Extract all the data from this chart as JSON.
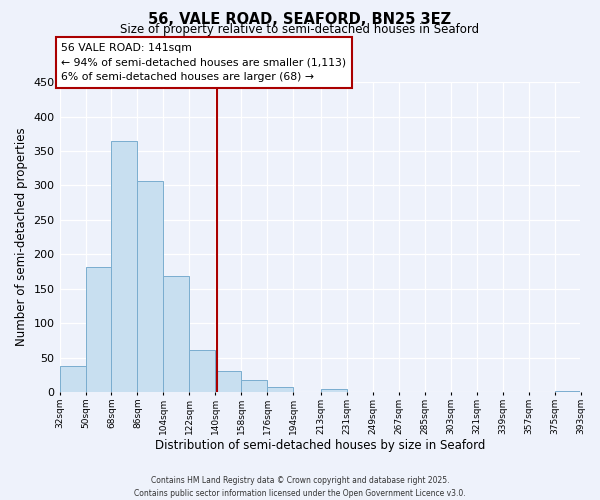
{
  "title": "56, VALE ROAD, SEAFORD, BN25 3EZ",
  "subtitle": "Size of property relative to semi-detached houses in Seaford",
  "xlabel": "Distribution of semi-detached houses by size in Seaford",
  "ylabel": "Number of semi-detached properties",
  "bar_color": "#c8dff0",
  "bar_edge_color": "#7aadcf",
  "background_color": "#eef2fb",
  "bin_edges": [
    32,
    50,
    68,
    86,
    104,
    122,
    140,
    158,
    176,
    194,
    213,
    231,
    249,
    267,
    285,
    303,
    321,
    339,
    357,
    375,
    393
  ],
  "bin_labels": [
    "32sqm",
    "50sqm",
    "68sqm",
    "86sqm",
    "104sqm",
    "122sqm",
    "140sqm",
    "158sqm",
    "176sqm",
    "194sqm",
    "213sqm",
    "231sqm",
    "249sqm",
    "267sqm",
    "285sqm",
    "303sqm",
    "321sqm",
    "339sqm",
    "357sqm",
    "375sqm",
    "393sqm"
  ],
  "bar_heights": [
    38,
    182,
    365,
    307,
    168,
    61,
    31,
    18,
    7,
    0,
    5,
    0,
    0,
    0,
    0,
    0,
    0,
    0,
    0,
    2
  ],
  "property_size": 141,
  "vline_color": "#aa0000",
  "annotation_title": "56 VALE ROAD: 141sqm",
  "annotation_line1": "← 94% of semi-detached houses are smaller (1,113)",
  "annotation_line2": "6% of semi-detached houses are larger (68) →",
  "annotation_box_color": "#ffffff",
  "annotation_box_edge": "#aa0000",
  "ylim": [
    0,
    450
  ],
  "yticks": [
    0,
    50,
    100,
    150,
    200,
    250,
    300,
    350,
    400,
    450
  ],
  "footnote1": "Contains HM Land Registry data © Crown copyright and database right 2025.",
  "footnote2": "Contains public sector information licensed under the Open Government Licence v3.0."
}
